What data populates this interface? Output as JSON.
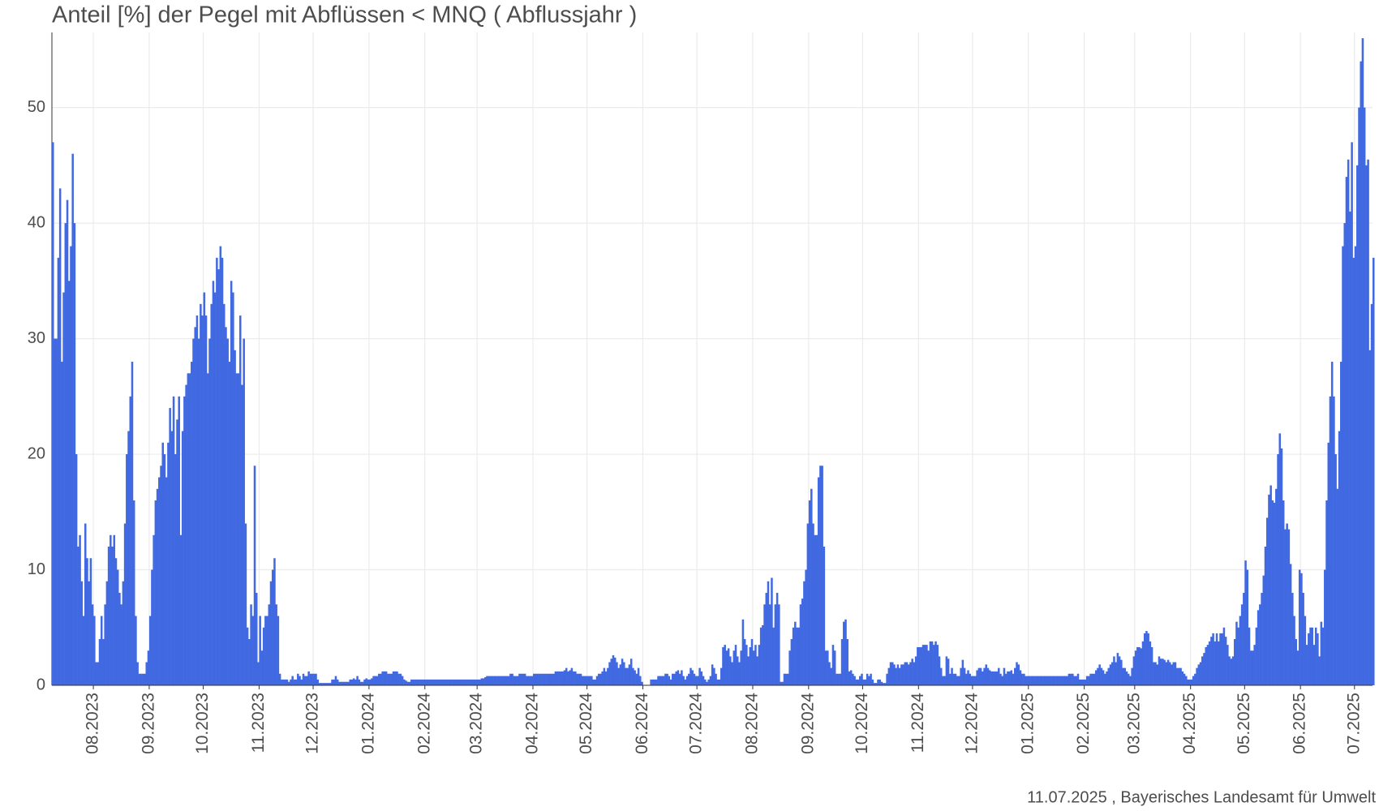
{
  "chart_data": {
    "type": "bar",
    "title": "Anteil [%] der Pegel mit Abflüssen < MNQ ( Abflussjahr )",
    "footer": "11.07.2025 , Bayerisches Landesamt für Umwelt",
    "color": "#4169e1",
    "grid": true,
    "ylim": [
      0,
      56.5
    ],
    "yticks": [
      0,
      10,
      20,
      30,
      40,
      50
    ],
    "xlim": [
      0,
      733
    ],
    "xticks": [
      {
        "value": 23,
        "label": "08.2023"
      },
      {
        "value": 54,
        "label": "09.2023"
      },
      {
        "value": 84,
        "label": "10.2023"
      },
      {
        "value": 115,
        "label": "11.2023"
      },
      {
        "value": 145,
        "label": "12.2023"
      },
      {
        "value": 176,
        "label": "01.2024"
      },
      {
        "value": 207,
        "label": "02.2024"
      },
      {
        "value": 236,
        "label": "03.2024"
      },
      {
        "value": 267,
        "label": "04.2024"
      },
      {
        "value": 297,
        "label": "05.2024"
      },
      {
        "value": 328,
        "label": "06.2024"
      },
      {
        "value": 358,
        "label": "07.2024"
      },
      {
        "value": 389,
        "label": "08.2024"
      },
      {
        "value": 420,
        "label": "09.2024"
      },
      {
        "value": 450,
        "label": "10.2024"
      },
      {
        "value": 481,
        "label": "11.2024"
      },
      {
        "value": 511,
        "label": "12.2024"
      },
      {
        "value": 542,
        "label": "01.2025"
      },
      {
        "value": 573,
        "label": "02.2025"
      },
      {
        "value": 601,
        "label": "03.2025"
      },
      {
        "value": 632,
        "label": "04.2025"
      },
      {
        "value": 662,
        "label": "05.2025"
      },
      {
        "value": 693,
        "label": "06.2025"
      },
      {
        "value": 723,
        "label": "07.2025"
      }
    ],
    "values": [
      47,
      30,
      30,
      37,
      43,
      28,
      34,
      40,
      42,
      35,
      38,
      46,
      40,
      20,
      12,
      13,
      9,
      6,
      14,
      11,
      9,
      11,
      7,
      6,
      2,
      2,
      4,
      6,
      4,
      7,
      9,
      12,
      13,
      12,
      13,
      11,
      10,
      8,
      7,
      9,
      14,
      20,
      22,
      25,
      28,
      16,
      6,
      2,
      1,
      1,
      1,
      1,
      2,
      3,
      6,
      10,
      13,
      16,
      17,
      18,
      19,
      21,
      20,
      18,
      21,
      24,
      22,
      25,
      20,
      23,
      25,
      13,
      22,
      25,
      26,
      27,
      27,
      28,
      30,
      31,
      32,
      30,
      33,
      32,
      34,
      32,
      27,
      30,
      33,
      35,
      34,
      37,
      36,
      38,
      37,
      33,
      31,
      30,
      28,
      35,
      34,
      29,
      27,
      27,
      32,
      26,
      30,
      14,
      5,
      4,
      7,
      6,
      19,
      8,
      2,
      6,
      3,
      5,
      6,
      6,
      7,
      9,
      10,
      11,
      7,
      6,
      1,
      0.5,
      0.5,
      0.5,
      0.5,
      0.3,
      0.5,
      0.8,
      0.5,
      0.5,
      1,
      0.8,
      0.5,
      1,
      0.8,
      0.8,
      1.2,
      1,
      1,
      1,
      1,
      0.5,
      0.2,
      0.2,
      0.2,
      0.2,
      0.2,
      0.2,
      0.2,
      0.5,
      0.5,
      0.8,
      0.5,
      0.3,
      0.3,
      0.3,
      0.3,
      0.3,
      0.3,
      0.5,
      0.5,
      0.6,
      0.5,
      0.8,
      0.5,
      0.3,
      0.3,
      0.5,
      0.6,
      0.5,
      0.5,
      0.6,
      0.8,
      0.8,
      0.8,
      1,
      1,
      1.2,
      1.2,
      1.2,
      1,
      1,
      1,
      1.2,
      1.2,
      1.2,
      1,
      1,
      0.8,
      0.5,
      0.4,
      0.3,
      0.3,
      0.5,
      0.5,
      0.5,
      0.5,
      0.5,
      0.5,
      0.5,
      0.5,
      0.5,
      0.5,
      0.5,
      0.5,
      0.5,
      0.5,
      0.5,
      0.5,
      0.5,
      0.5,
      0.5,
      0.5,
      0.5,
      0.5,
      0.5,
      0.5,
      0.5,
      0.5,
      0.5,
      0.5,
      0.5,
      0.5,
      0.5,
      0.5,
      0.5,
      0.5,
      0.5,
      0.5,
      0.5,
      0.5,
      0.5,
      0.6,
      0.6,
      0.7,
      0.8,
      0.8,
      0.8,
      0.8,
      0.8,
      0.8,
      0.8,
      0.8,
      0.8,
      0.8,
      0.8,
      0.8,
      0.8,
      1,
      1,
      0.8,
      0.8,
      0.8,
      1,
      1,
      1,
      1,
      0.8,
      0.8,
      0.8,
      0.8,
      1,
      1,
      1,
      1,
      1,
      1,
      1,
      1,
      1,
      1,
      1,
      1,
      1.2,
      1.2,
      1.2,
      1.2,
      1.2,
      1.3,
      1.5,
      1.2,
      1.3,
      1.5,
      1.2,
      1.2,
      1,
      1,
      1,
      0.8,
      0.8,
      0.8,
      0.8,
      0.8,
      0.8,
      0.5,
      0.5,
      0.8,
      1,
      1,
      1.2,
      1.5,
      1.2,
      1.5,
      2,
      2.3,
      2.6,
      2.4,
      2,
      1.5,
      1.8,
      2.3,
      2,
      1.5,
      1.5,
      1.8,
      2.3,
      1.5,
      1.3,
      1,
      1.5,
      0.8,
      0.3,
      0,
      0,
      0,
      0,
      0.5,
      0.5,
      0.5,
      0.5,
      0.8,
      0.8,
      0.8,
      0.8,
      1,
      1,
      0.8,
      0.5,
      1,
      1,
      1.2,
      1.3,
      1,
      1.3,
      0.8,
      0.5,
      0.8,
      1,
      1.5,
      1.3,
      1,
      0.8,
      0.8,
      1.5,
      1.2,
      0.8,
      0.5,
      0.3,
      0.5,
      0.8,
      1.8,
      1.5,
      1,
      0.5,
      0.5,
      1.5,
      3.3,
      3.5,
      3,
      3.2,
      2.5,
      2,
      3,
      3.5,
      2.5,
      2,
      3,
      5.7,
      4,
      3.5,
      2.5,
      3.3,
      4,
      3,
      3.5,
      2.5,
      3.5,
      5,
      5.2,
      7,
      8,
      9,
      7,
      9.3,
      5,
      7,
      8,
      7,
      0.3,
      0.3,
      1,
      1,
      1,
      3,
      4,
      5,
      5.5,
      5,
      5,
      7,
      7.5,
      9,
      10,
      14,
      16,
      17,
      14,
      13,
      13,
      18,
      19,
      19,
      12,
      3,
      3,
      2,
      1.5,
      3.5,
      3,
      1,
      1,
      1,
      4,
      5.5,
      5.7,
      4,
      1.2,
      1.3,
      1,
      0.8,
      0.5,
      0.5,
      0.8,
      1,
      0.5,
      0.5,
      1,
      0.8,
      1,
      0.5,
      0.2,
      0.2,
      0.5,
      0.5,
      0.3,
      0.2,
      0.2,
      1,
      1.5,
      2,
      2,
      1.8,
      1.5,
      1.8,
      1.5,
      1.8,
      1.8,
      2,
      2,
      1.8,
      2,
      2.3,
      2,
      2.5,
      3.3,
      3.3,
      3.3,
      3.5,
      3.5,
      3.5,
      3,
      3.8,
      3.8,
      3.5,
      3.8,
      3.5,
      2.5,
      1.5,
      0.8,
      0.8,
      2.5,
      2.3,
      1,
      1.5,
      1,
      1,
      0.8,
      0.8,
      1.5,
      2.2,
      1.5,
      1,
      1.3,
      1,
      0.8,
      0.8,
      0.8,
      1.3,
      1.5,
      1.5,
      1.2,
      1.5,
      1.8,
      1.5,
      1.3,
      1.2,
      1.2,
      1.2,
      1.2,
      1.5,
      1,
      0.8,
      1.5,
      1,
      1.2,
      1.2,
      1.3,
      1,
      1.5,
      2,
      1.8,
      1.3,
      1,
      1,
      0.8,
      0.8,
      0.8,
      0.8,
      0.8,
      0.8,
      0.8,
      0.8,
      0.8,
      0.8,
      0.8,
      0.8,
      0.8,
      0.8,
      0.8,
      0.8,
      0.8,
      0.8,
      0.8,
      0.8,
      0.8,
      0.8,
      0.8,
      0.8,
      1,
      1,
      1,
      0.8,
      0.8,
      1,
      0.5,
      0.5,
      0.5,
      0.5,
      0.8,
      0.8,
      1,
      1,
      1,
      1.3,
      1.5,
      1.8,
      1.5,
      1.3,
      1,
      1.2,
      1.5,
      1.8,
      2,
      2.5,
      2,
      2.8,
      2.5,
      2.2,
      1.5,
      1.5,
      1.2,
      1,
      0.8,
      1.5,
      2.5,
      3,
      3.3,
      3.3,
      3.2,
      3.8,
      4.5,
      4.7,
      4.5,
      3.8,
      3.3,
      2,
      2,
      1.8,
      2.5,
      2.3,
      2.3,
      2.2,
      2,
      2.2,
      2,
      1.8,
      2,
      2,
      1.5,
      1.5,
      1.5,
      1.2,
      1,
      0.8,
      0.5,
      0.5,
      0.5,
      0.8,
      1,
      1.5,
      1.8,
      2,
      2.5,
      2.8,
      3.3,
      3.5,
      3.8,
      4.2,
      4.5,
      3.8,
      4.5,
      3.8,
      4.5,
      4.5,
      5,
      4.2,
      3.5,
      2.5,
      2.3,
      2.5,
      4,
      5.5,
      5,
      6,
      7,
      8,
      10.8,
      10,
      5,
      3,
      3,
      3.5,
      5,
      6.5,
      7,
      8,
      9.5,
      12,
      14.5,
      16.5,
      17.3,
      16,
      15.8,
      17,
      20,
      21.8,
      20.5,
      16,
      13.5,
      14,
      13.5,
      10.5,
      8,
      6,
      4,
      3,
      10,
      9.7,
      8,
      6,
      3.5,
      4.5,
      5,
      5,
      3.5,
      5,
      4.5,
      2.5,
      5.5,
      5,
      10,
      16,
      21,
      25,
      28,
      25,
      20,
      17,
      22,
      28,
      38,
      40,
      44,
      45.5,
      41,
      47,
      37,
      38,
      45,
      50,
      54,
      56,
      50,
      45,
      45.5,
      29,
      33,
      37
    ]
  }
}
